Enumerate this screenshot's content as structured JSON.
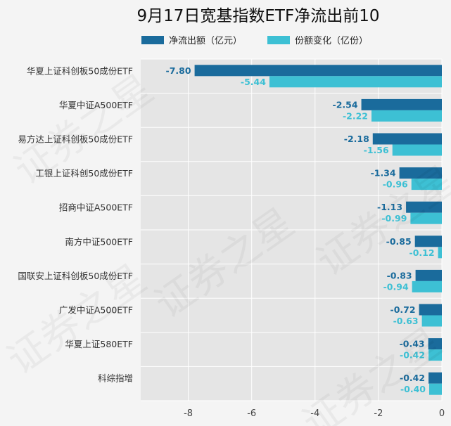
{
  "chart_data": {
    "type": "bar",
    "orientation": "horizontal",
    "title": "9月17日宽基指数ETF净流出前10",
    "categories": [
      "华夏上证科创板50成份ETF",
      "华夏中证A500ETF",
      "易方达上证科创板50成份ETF",
      "工银上证科创50成份ETF",
      "招商中证A500ETF",
      "南方中证500ETF",
      "国联安上证科创板50成份ETF",
      "广发中证A500ETF",
      "华夏上证580ETF",
      "科综指增"
    ],
    "series": [
      {
        "name": "净流出额（亿元）",
        "color": "#1a6b9c",
        "values": [
          -7.8,
          -2.54,
          -2.18,
          -1.34,
          -1.13,
          -0.85,
          -0.83,
          -0.72,
          -0.43,
          -0.42
        ],
        "labels": [
          "-7.80",
          "-2.54",
          "-2.18",
          "-1.34",
          "-1.13",
          "-0.85",
          "-0.83",
          "-0.72",
          "-0.43",
          "-0.42"
        ]
      },
      {
        "name": "份额变化（亿份）",
        "color": "#3dc0d4",
        "values": [
          -5.44,
          -2.22,
          -1.56,
          -0.96,
          -0.99,
          -0.12,
          -0.94,
          -0.63,
          -0.42,
          -0.4
        ],
        "labels": [
          "-5.44",
          "-2.22",
          "-1.56",
          "-0.96",
          "-0.99",
          "-0.12",
          "-0.94",
          "-0.63",
          "-0.42",
          "-0.40"
        ]
      }
    ],
    "xlim": [
      -9.5,
      0
    ],
    "x_ticks": [
      -8,
      -6,
      -4,
      -2,
      0
    ],
    "x_tick_labels": [
      "-8",
      "-6",
      "-4",
      "-2",
      "0"
    ],
    "grid": true,
    "legend_position": "top"
  },
  "colors": {
    "background": "#f4f4f4",
    "plot_background": "#e5e5e5",
    "grid": "#ffffff"
  },
  "watermark": "证券之星"
}
